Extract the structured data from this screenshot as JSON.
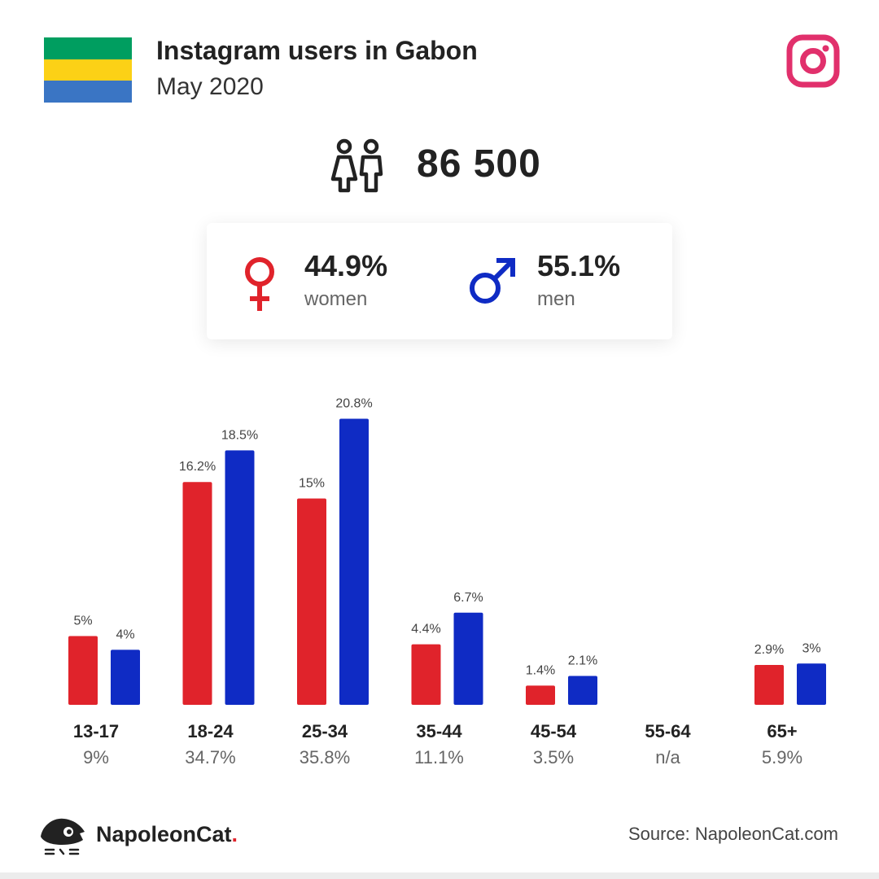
{
  "header": {
    "title": "Instagram users in Gabon",
    "subtitle": "May 2020",
    "flag_colors": [
      "#009e60",
      "#fcd116",
      "#3a75c4"
    ],
    "brand_icon": "instagram-icon",
    "brand_color": "#e1306c"
  },
  "total": {
    "icon": "people-icon",
    "value": "86 500"
  },
  "gender": {
    "women": {
      "icon": "female-symbol-icon",
      "percent": "44.9%",
      "label": "women",
      "color": "#e0232b"
    },
    "men": {
      "icon": "male-symbol-icon",
      "percent": "55.1%",
      "label": "men",
      "color": "#0f2bc4"
    }
  },
  "chart_data": {
    "type": "bar",
    "categories": [
      "13-17",
      "18-24",
      "25-34",
      "35-44",
      "45-54",
      "55-64",
      "65+"
    ],
    "totals": [
      "9%",
      "34.7%",
      "35.8%",
      "11.1%",
      "3.5%",
      "n/a",
      "5.9%"
    ],
    "series": [
      {
        "name": "women",
        "color": "#e0232b",
        "values": [
          5,
          16.2,
          15,
          4.4,
          1.4,
          null,
          2.9
        ],
        "labels": [
          "5%",
          "16.2%",
          "15%",
          "4.4%",
          "1.4%",
          "",
          "2.9%"
        ]
      },
      {
        "name": "men",
        "color": "#0f2bc4",
        "values": [
          4,
          18.5,
          20.8,
          6.7,
          2.1,
          null,
          3
        ],
        "labels": [
          "4%",
          "18.5%",
          "20.8%",
          "6.7%",
          "2.1%",
          "",
          "3%"
        ]
      }
    ],
    "unit": "%"
  },
  "footer": {
    "logo_icon": "napoleoncat-logo-icon",
    "brand_name": "NapoleonCat",
    "brand_dot": ".",
    "source": "Source: NapoleonCat.com"
  }
}
